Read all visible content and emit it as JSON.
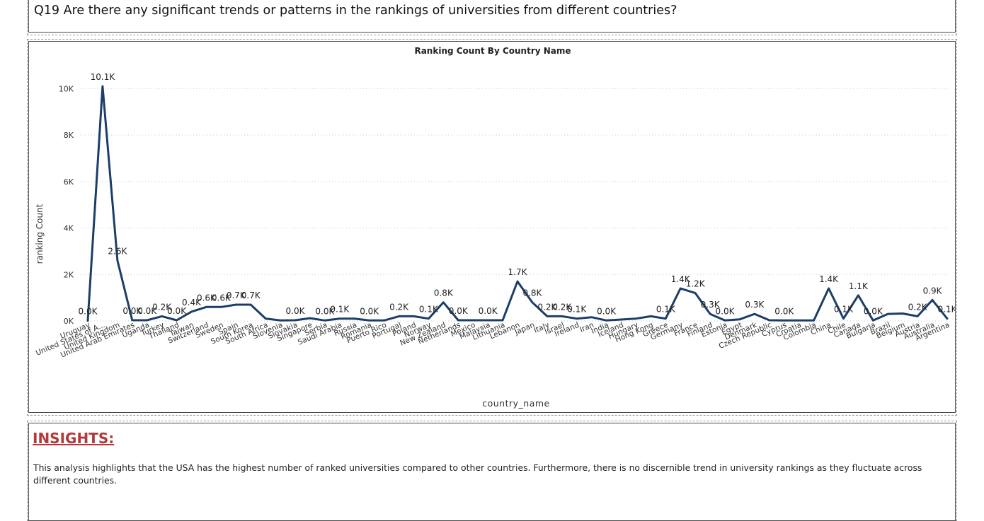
{
  "question": {
    "text": "Q19 Are there any significant trends or patterns in the rankings of universities from different countries?"
  },
  "insights": {
    "title": "INSIGHTS:",
    "body": "This analysis highlights that the USA has the highest number of ranked universities compared to other countries. Furthermore, there is no discernible trend in university rankings as they fluctuate across different countries."
  },
  "colors": {
    "line": "#1b3e68",
    "grid": "#c8c8c8",
    "title_accent": "#b13a3a"
  },
  "chart_data": {
    "type": "line",
    "title": "Ranking Count By Country Name",
    "xlabel": "country_name",
    "ylabel": "ranking Count",
    "ylim": [
      0,
      10100
    ],
    "yticks": [
      0,
      2000,
      4000,
      6000,
      8000,
      10000
    ],
    "ytick_labels": [
      "0K",
      "2K",
      "4K",
      "6K",
      "8K",
      "10K"
    ],
    "grid": true,
    "categories": [
      "Uruguay",
      "United States of A...",
      "United Kingdom",
      "United Arab Emirates",
      "Uganda",
      "Turkey",
      "Thailand",
      "Taiwan",
      "Switzerland",
      "Sweden",
      "Spain",
      "South Korea",
      "South Africa",
      "Slovenia",
      "Slovakia",
      "Singapore",
      "Serbia",
      "Saudi Arabia",
      "Russia",
      "Romania",
      "Puerto Rico",
      "Portugal",
      "Poland",
      "Norway",
      "New Zealand",
      "Netherlands",
      "Mexico",
      "Malaysia",
      "Lithuania",
      "Lebanon",
      "Japan",
      "Italy",
      "Israel",
      "Ireland",
      "Iran",
      "India",
      "Iceland",
      "Hungary",
      "Hong Kong",
      "Greece",
      "Germany",
      "France",
      "Finland",
      "Estonia",
      "Egypt",
      "Denmark",
      "Czech Republic",
      "Cyprus",
      "Croatia",
      "Colombia",
      "China",
      "Chile",
      "Canada",
      "Bulgaria",
      "Brazil",
      "Belgium",
      "Austria",
      "Australia",
      "Argentina"
    ],
    "values": [
      10,
      10100,
      2600,
      30,
      30,
      200,
      30,
      400,
      600,
      600,
      700,
      700,
      100,
      20,
      30,
      120,
      20,
      100,
      100,
      20,
      20,
      200,
      200,
      100,
      800,
      30,
      30,
      30,
      30,
      1700,
      800,
      200,
      200,
      100,
      160,
      20,
      60,
      100,
      200,
      100,
      1400,
      1200,
      300,
      20,
      70,
      300,
      30,
      20,
      20,
      20,
      1400,
      100,
      1100,
      20,
      300,
      320,
      200,
      900,
      100
    ],
    "labels": [
      "0.0K",
      "10.1K",
      "2.6K",
      "0.0K",
      "0.0K",
      "0.2K",
      "0.0K",
      "0.4K",
      "0.6K",
      "0.6K",
      "0.7K",
      "0.7K",
      "",
      "",
      "0.0K",
      "",
      "0.0K",
      "0.1K",
      "",
      "0.0K",
      "",
      "0.2K",
      "",
      "0.1K",
      "0.8K",
      "0.0K",
      "",
      "0.0K",
      "",
      "1.7K",
      "0.8K",
      "0.2K",
      "0.2K",
      "0.1K",
      "",
      "0.0K",
      "",
      "",
      "",
      "0.1K",
      "1.4K",
      "1.2K",
      "0.3K",
      "0.0K",
      "",
      "0.3K",
      "",
      "0.0K",
      "",
      "",
      "1.4K",
      "0.1K",
      "1.1K",
      "0.0K",
      "",
      "",
      "0.2K",
      "0.9K",
      "0.1K"
    ]
  }
}
